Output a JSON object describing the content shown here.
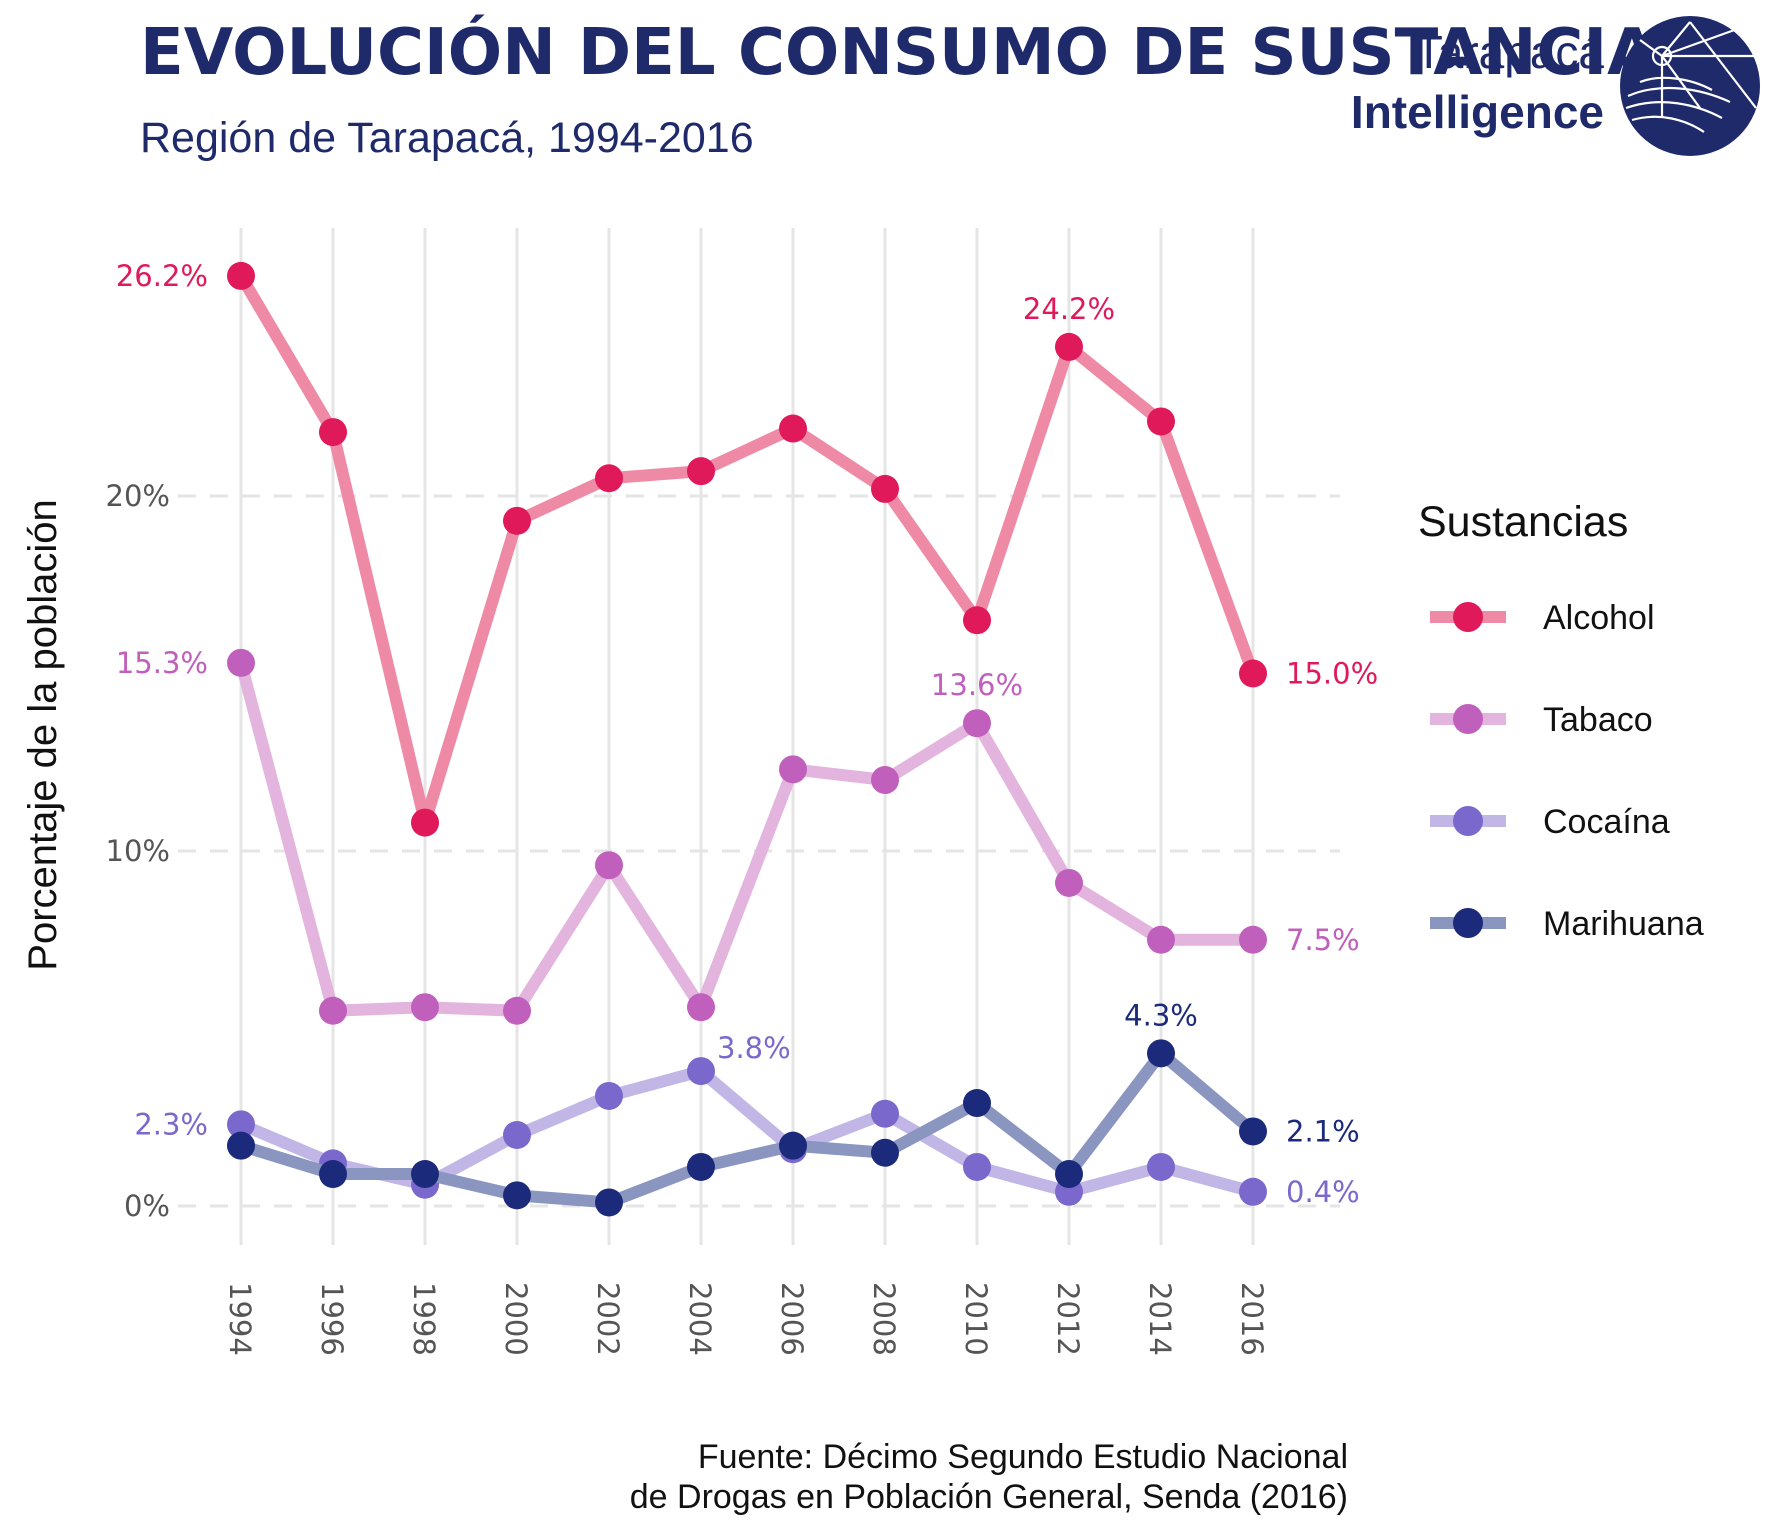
{
  "title": "EVOLUCIÓN DEL CONSUMO DE SUSTANCIAS",
  "subtitle": "Región de Tarapacá, 1994-2016",
  "logo": {
    "line1": "Tarapacá",
    "line2": "Intelligence",
    "icon": "globe-lighthouse-icon"
  },
  "source": {
    "line1": "Fuente: Décimo Segundo Estudio Nacional",
    "line2": "de Drogas en Población General, Senda (2016)"
  },
  "colors": {
    "title": "#1f2a6b",
    "grid": "#e5e5e5",
    "tick_text": "#555555"
  },
  "chart_data": {
    "type": "line",
    "ylabel": "Porcentaje de la población",
    "ylim": [
      -1,
      29
    ],
    "y_ticks": [
      0,
      10,
      20
    ],
    "y_tick_labels": [
      "0%",
      "10%",
      "20%"
    ],
    "x": [
      1994,
      1996,
      1998,
      2000,
      2002,
      2004,
      2006,
      2008,
      2010,
      2012,
      2014,
      2016
    ],
    "x_tick_labels": [
      "1994",
      "1996",
      "1998",
      "2000",
      "2002",
      "2004",
      "2006",
      "2008",
      "2010",
      "2012",
      "2014",
      "2016"
    ],
    "grid": true,
    "legend": {
      "title": "Sustancias",
      "position": "right"
    },
    "series": [
      {
        "name": "Alcohol",
        "color": "#e0195a",
        "line_color": "#ee8aa5",
        "values": [
          26.2,
          21.8,
          10.8,
          19.3,
          20.5,
          20.7,
          21.9,
          20.2,
          16.5,
          24.2,
          22.1,
          15.0
        ]
      },
      {
        "name": "Tabaco",
        "color": "#c060bc",
        "line_color": "#e2b4de",
        "values": [
          15.3,
          5.5,
          5.6,
          5.5,
          9.6,
          5.6,
          12.3,
          12.0,
          13.6,
          9.1,
          7.5,
          7.5
        ]
      },
      {
        "name": "Cocaína",
        "color": "#7b68cc",
        "line_color": "#c1b6e6",
        "values": [
          2.3,
          1.2,
          0.6,
          2.0,
          3.1,
          3.8,
          1.6,
          2.6,
          1.1,
          0.4,
          1.1,
          0.4
        ]
      },
      {
        "name": "Marihuana",
        "color": "#1b2a7a",
        "line_color": "#8a95c0",
        "values": [
          1.7,
          0.9,
          0.9,
          0.3,
          0.1,
          1.1,
          1.7,
          1.5,
          2.9,
          0.9,
          4.3,
          2.1
        ]
      }
    ],
    "annotations": [
      {
        "series": "Alcohol",
        "x": 1994,
        "text": "26.2%"
      },
      {
        "series": "Alcohol",
        "x": 2012,
        "text": "24.2%"
      },
      {
        "series": "Alcohol",
        "x": 2016,
        "text": "15.0%"
      },
      {
        "series": "Tabaco",
        "x": 1994,
        "text": "15.3%"
      },
      {
        "series": "Tabaco",
        "x": 2010,
        "text": "13.6%"
      },
      {
        "series": "Tabaco",
        "x": 2016,
        "text": "7.5%"
      },
      {
        "series": "Cocaína",
        "x": 1994,
        "text": "2.3%"
      },
      {
        "series": "Cocaína",
        "x": 2004,
        "text": "3.8%"
      },
      {
        "series": "Cocaína",
        "x": 2016,
        "text": "0.4%"
      },
      {
        "series": "Marihuana",
        "x": 2014,
        "text": "4.3%"
      },
      {
        "series": "Marihuana",
        "x": 2016,
        "text": "2.1%"
      }
    ]
  }
}
